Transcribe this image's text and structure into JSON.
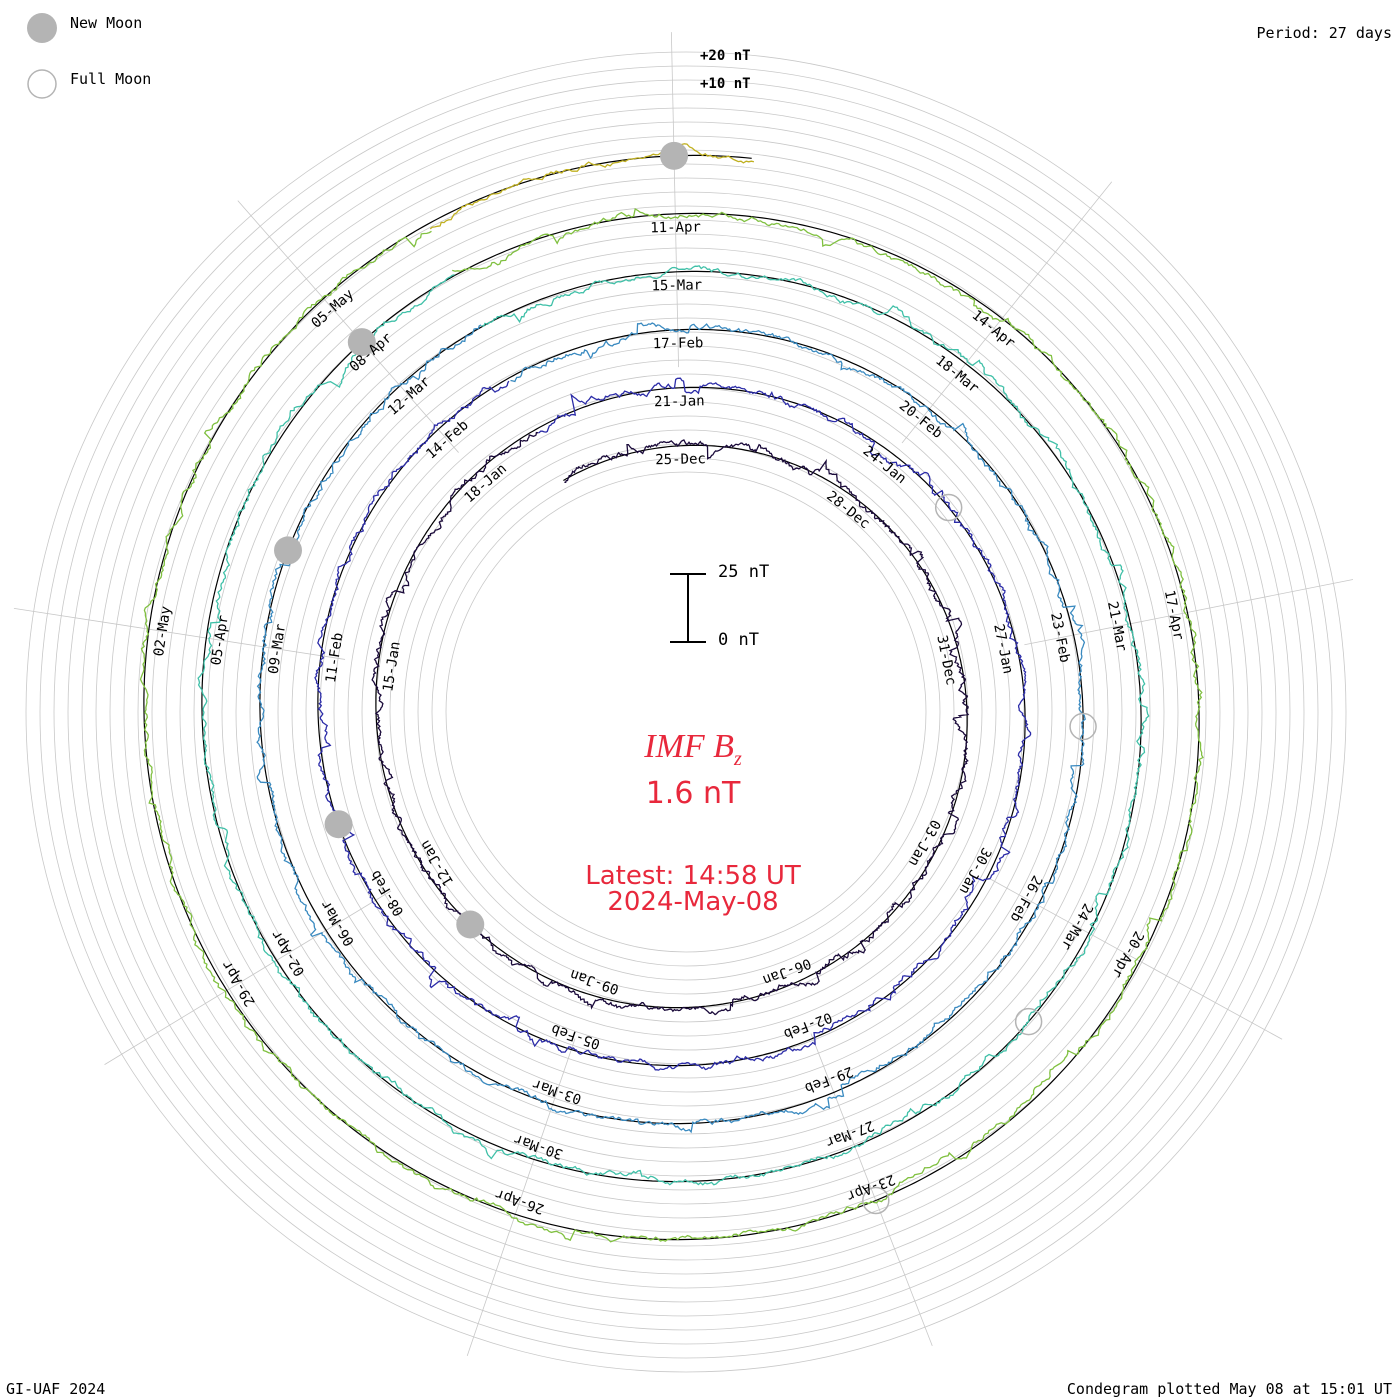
{
  "header": {
    "period_label": "Period: 27 days"
  },
  "legend": {
    "new_moon_label": "New Moon",
    "full_moon_label": "Full Moon",
    "new_moon_color": "#b4b4b4",
    "full_moon_color": "#b4b4b4"
  },
  "footer": {
    "credit": "GI-UAF 2024",
    "plotted": "Condegram plotted May 08 at 15:01 UT"
  },
  "scale_bar": {
    "top_label": "25 nT",
    "bottom_label": "0 nT"
  },
  "reference_labels": [
    "+20 nT",
    "+10 nT"
  ],
  "center": {
    "title": "IMF B",
    "title_sub": "z",
    "value": "1.6 nT",
    "latest_line1": "Latest: 14:58 UT",
    "latest_line2": "2024-May-08"
  },
  "chart_data": {
    "type": "line",
    "title": "IMF Bz",
    "layout": "spiral condegram (one turn per period)",
    "period_days": 27,
    "units": "nT",
    "start_date": "2023-12-23",
    "end_date": "2024-05-08",
    "latest_value": 1.6,
    "grid": true,
    "ring_colors": [
      "#1a0a3a",
      "#2c2ca8",
      "#3a8ac0",
      "#40c0a8",
      "#80c040",
      "#c0b020",
      "#c85a10",
      "#c81a10"
    ],
    "date_labels": [
      {
        "label": "25-Dec",
        "date": "2023-12-25"
      },
      {
        "label": "28-Dec",
        "date": "2023-12-28"
      },
      {
        "label": "31-Dec",
        "date": "2023-12-31"
      },
      {
        "label": "03-Jan",
        "date": "2024-01-03"
      },
      {
        "label": "06-Jan",
        "date": "2024-01-06"
      },
      {
        "label": "09-Jan",
        "date": "2024-01-09"
      },
      {
        "label": "12-Jan",
        "date": "2024-01-12"
      },
      {
        "label": "15-Jan",
        "date": "2024-01-15"
      },
      {
        "label": "18-Jan",
        "date": "2024-01-18"
      },
      {
        "label": "21-Jan",
        "date": "2024-01-21"
      },
      {
        "label": "24-Jan",
        "date": "2024-01-24"
      },
      {
        "label": "27-Jan",
        "date": "2024-01-27"
      },
      {
        "label": "30-Jan",
        "date": "2024-01-30"
      },
      {
        "label": "02-Feb",
        "date": "2024-02-02"
      },
      {
        "label": "05-Feb",
        "date": "2024-02-05"
      },
      {
        "label": "08-Feb",
        "date": "2024-02-08"
      },
      {
        "label": "11-Feb",
        "date": "2024-02-11"
      },
      {
        "label": "14-Feb",
        "date": "2024-02-14"
      },
      {
        "label": "17-Feb",
        "date": "2024-02-17"
      },
      {
        "label": "20-Feb",
        "date": "2024-02-20"
      },
      {
        "label": "23-Feb",
        "date": "2024-02-23"
      },
      {
        "label": "26-Feb",
        "date": "2024-02-26"
      },
      {
        "label": "29-Feb",
        "date": "2024-02-29"
      },
      {
        "label": "03-Mar",
        "date": "2024-03-03"
      },
      {
        "label": "06-Mar",
        "date": "2024-03-06"
      },
      {
        "label": "09-Mar",
        "date": "2024-03-09"
      },
      {
        "label": "12-Mar",
        "date": "2024-03-12"
      },
      {
        "label": "15-Mar",
        "date": "2024-03-15"
      },
      {
        "label": "18-Mar",
        "date": "2024-03-18"
      },
      {
        "label": "21-Mar",
        "date": "2024-03-21"
      },
      {
        "label": "24-Mar",
        "date": "2024-03-24"
      },
      {
        "label": "27-Mar",
        "date": "2024-03-27"
      },
      {
        "label": "30-Mar",
        "date": "2024-03-30"
      },
      {
        "label": "02-Apr",
        "date": "2024-04-02"
      },
      {
        "label": "05-Apr",
        "date": "2024-04-05"
      },
      {
        "label": "08-Apr",
        "date": "2024-04-08"
      },
      {
        "label": "11-Apr",
        "date": "2024-04-11"
      },
      {
        "label": "14-Apr",
        "date": "2024-04-14"
      },
      {
        "label": "17-Apr",
        "date": "2024-04-17"
      },
      {
        "label": "20-Apr",
        "date": "2024-04-20"
      },
      {
        "label": "23-Apr",
        "date": "2024-04-23"
      },
      {
        "label": "26-Apr",
        "date": "2024-04-26"
      },
      {
        "label": "29-Apr",
        "date": "2024-04-29"
      },
      {
        "label": "02-May",
        "date": "2024-05-02"
      },
      {
        "label": "05-May",
        "date": "2024-05-05"
      }
    ],
    "moon_phases": [
      {
        "phase": "new",
        "date": "2024-01-11"
      },
      {
        "phase": "full",
        "date": "2024-01-25"
      },
      {
        "phase": "new",
        "date": "2024-02-09"
      },
      {
        "phase": "full",
        "date": "2024-02-24"
      },
      {
        "phase": "new",
        "date": "2024-03-10"
      },
      {
        "phase": "full",
        "date": "2024-03-25"
      },
      {
        "phase": "new",
        "date": "2024-04-08"
      },
      {
        "phase": "full",
        "date": "2024-04-23"
      },
      {
        "phase": "new",
        "date": "2024-05-08"
      }
    ]
  }
}
